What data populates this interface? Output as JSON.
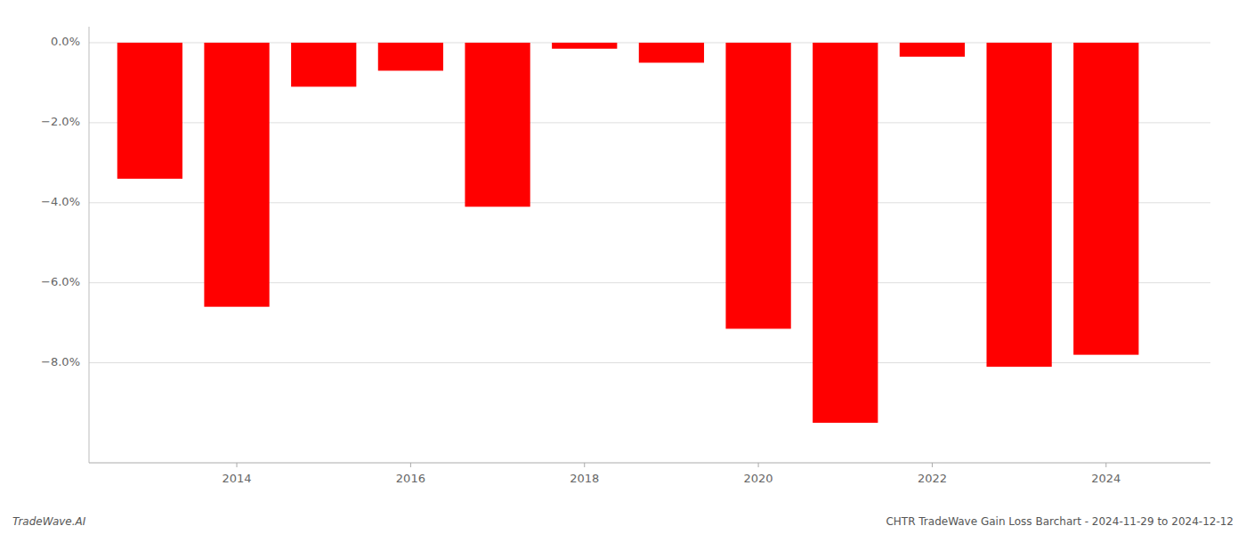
{
  "chart_data": {
    "type": "bar",
    "x": [
      2013,
      2014,
      2015,
      2016,
      2017,
      2018,
      2019,
      2020,
      2021,
      2022,
      2023,
      2024
    ],
    "values": [
      -3.4,
      -6.6,
      -1.1,
      -0.7,
      -4.1,
      -0.15,
      -0.5,
      -7.15,
      -9.5,
      -0.35,
      -8.1,
      -7.8
    ],
    "color": "#ff0000",
    "xlim": [
      2012.3,
      2025.2
    ],
    "xticks": [
      2014,
      2016,
      2018,
      2020,
      2022,
      2024
    ],
    "ylim": [
      -10.5,
      0.4
    ],
    "yticks": [
      {
        "value": 0.0,
        "label": "0.0%"
      },
      {
        "value": -2.0,
        "label": "−2.0%"
      },
      {
        "value": -4.0,
        "label": "−4.0%"
      },
      {
        "value": -6.0,
        "label": "−6.0%"
      },
      {
        "value": -8.0,
        "label": "−8.0%"
      }
    ],
    "grid": true,
    "annotations": [
      "TradeWave.AI",
      "CHTR TradeWave Gain Loss Barchart - 2024-11-29 to 2024-12-12"
    ]
  }
}
